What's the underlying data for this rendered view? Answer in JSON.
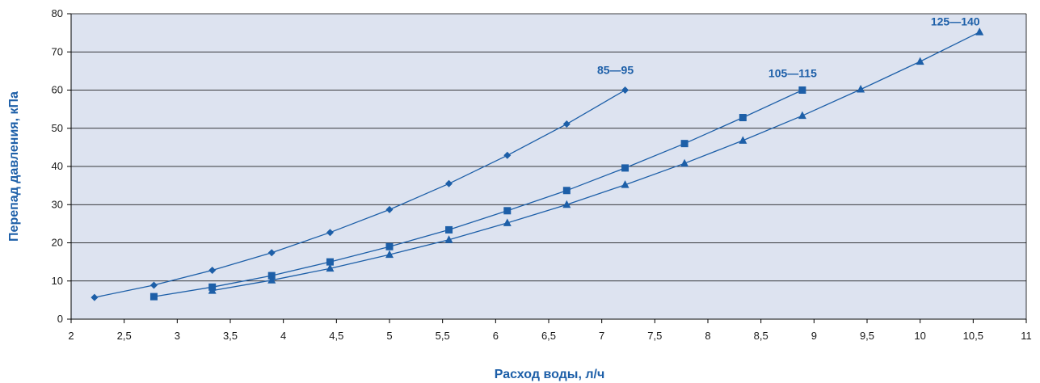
{
  "chart_data": {
    "type": "line",
    "xlabel": "Расход воды, л/ч",
    "ylabel": "Перепад давления, кПа",
    "xlim": [
      2,
      11
    ],
    "ylim": [
      0,
      80
    ],
    "x_ticks": [
      "2",
      "2,5",
      "3",
      "3,5",
      "4",
      "4,5",
      "5",
      "5,5",
      "6",
      "6,5",
      "7",
      "7,5",
      "8",
      "8,5",
      "9",
      "9,5",
      "10",
      "10,5",
      "11"
    ],
    "y_ticks": [
      "0",
      "10",
      "20",
      "30",
      "40",
      "50",
      "60",
      "70",
      "80"
    ],
    "grid": "horizontal",
    "plot_background": "#dde3f0",
    "line_color": "#1d5fa8",
    "series": [
      {
        "name": "85—95",
        "marker": "diamond",
        "x": [
          2.22,
          2.78,
          3.33,
          3.89,
          4.44,
          5.0,
          5.56,
          6.11,
          6.67,
          7.22
        ],
        "y": [
          5.7,
          8.9,
          12.8,
          17.4,
          22.7,
          28.7,
          35.5,
          42.9,
          51.1,
          60.0
        ]
      },
      {
        "name": "105—115",
        "marker": "square",
        "x": [
          2.78,
          3.33,
          3.89,
          4.44,
          5.0,
          5.56,
          6.11,
          6.67,
          7.22,
          7.78,
          8.33,
          8.89
        ],
        "y": [
          5.9,
          8.4,
          11.4,
          15.0,
          19.0,
          23.4,
          28.4,
          33.7,
          39.6,
          46.0,
          52.8,
          60.0
        ]
      },
      {
        "name": "125—140",
        "marker": "triangle",
        "x": [
          3.33,
          3.89,
          4.44,
          5.0,
          5.56,
          6.11,
          6.67,
          7.22,
          7.78,
          8.33,
          8.89,
          9.44,
          10.0,
          10.56
        ],
        "y": [
          7.5,
          10.2,
          13.3,
          16.9,
          20.8,
          25.2,
          30.0,
          35.2,
          40.8,
          46.8,
          53.3,
          60.2,
          67.5,
          75.2
        ]
      }
    ]
  }
}
